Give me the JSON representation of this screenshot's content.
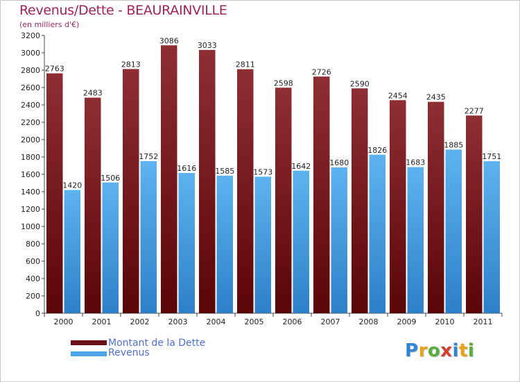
{
  "title": "Revenus/Dette - BEAURAINVILLE",
  "subtitle": "(en milliers d'€)",
  "colors": {
    "dette": "#7a1a1f",
    "revenus": "#4aa4e6",
    "title": "#a0245a",
    "legend_text": "#4f6fd6"
  },
  "legend": {
    "position": "bottom-left",
    "items": [
      {
        "label": "Montant de la Dette",
        "color": "#6a0d14"
      },
      {
        "label": "Revenus",
        "color": "#4aa4e6"
      }
    ]
  },
  "logo": {
    "text": "Proxiti",
    "letters": [
      {
        "ch": "P",
        "color": "#2f86d6"
      },
      {
        "ch": "r",
        "color": "#e8a317"
      },
      {
        "ch": "o",
        "color": "#5cae3a"
      },
      {
        "ch": "x",
        "color": "#d83a2a"
      },
      {
        "ch": "i",
        "color": "#2f86d6"
      },
      {
        "ch": "t",
        "color": "#e8a317"
      },
      {
        "ch": "i",
        "color": "#5cae3a"
      }
    ]
  },
  "chart_data": {
    "type": "bar",
    "categories": [
      "2000",
      "2001",
      "2002",
      "2003",
      "2004",
      "2005",
      "2006",
      "2007",
      "2008",
      "2009",
      "2010",
      "2011"
    ],
    "series": [
      {
        "name": "Montant de la Dette",
        "values": [
          2763,
          2483,
          2813,
          3086,
          3033,
          2811,
          2598,
          2726,
          2590,
          2454,
          2435,
          2277
        ]
      },
      {
        "name": "Revenus",
        "values": [
          1420,
          1506,
          1752,
          1616,
          1585,
          1573,
          1642,
          1680,
          1826,
          1683,
          1885,
          1751
        ]
      }
    ],
    "title": "Revenus/Dette - BEAURAINVILLE",
    "ylabel": "(en milliers d'€)",
    "xlabel": "",
    "ylim": [
      0,
      3200
    ],
    "yticks": [
      0,
      200,
      400,
      600,
      800,
      1000,
      1200,
      1400,
      1600,
      1800,
      2000,
      2200,
      2400,
      2600,
      2800,
      3000,
      3200
    ],
    "grid": false,
    "data_labels": true
  }
}
